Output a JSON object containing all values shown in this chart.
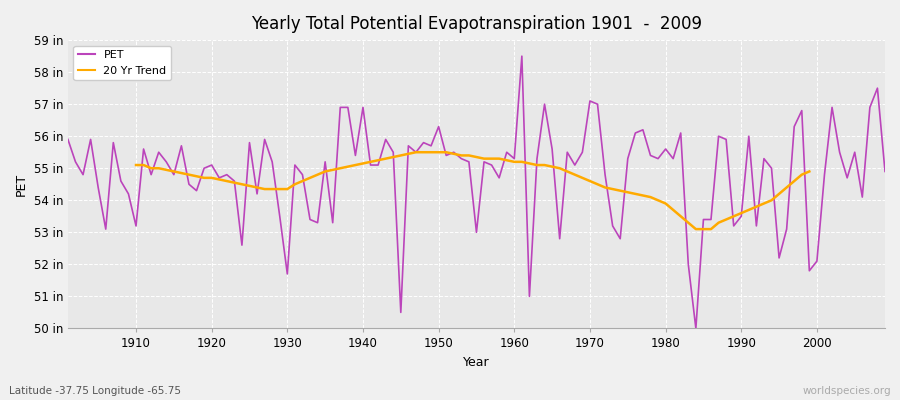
{
  "title": "Yearly Total Potential Evapotranspiration 1901  -  2009",
  "xlabel": "Year",
  "ylabel": "PET",
  "subtitle": "Latitude -37.75 Longitude -65.75",
  "watermark": "worldspecies.org",
  "ylim": [
    50,
    59
  ],
  "yticks": [
    50,
    51,
    52,
    53,
    54,
    55,
    56,
    57,
    58,
    59
  ],
  "ytick_labels": [
    "50 in",
    "51 in",
    "52 in",
    "53 in",
    "54 in",
    "55 in",
    "56 in",
    "57 in",
    "58 in",
    "59 in"
  ],
  "pet_color": "#bb44bb",
  "trend_color": "#ffaa00",
  "fig_bg_color": "#f0f0f0",
  "plot_bg_color": "#e8e8e8",
  "grid_color": "#ffffff",
  "years": [
    1901,
    1902,
    1903,
    1904,
    1905,
    1906,
    1907,
    1908,
    1909,
    1910,
    1911,
    1912,
    1913,
    1914,
    1915,
    1916,
    1917,
    1918,
    1919,
    1920,
    1921,
    1922,
    1923,
    1924,
    1925,
    1926,
    1927,
    1928,
    1929,
    1930,
    1931,
    1932,
    1933,
    1934,
    1935,
    1936,
    1937,
    1938,
    1939,
    1940,
    1941,
    1942,
    1943,
    1944,
    1945,
    1946,
    1947,
    1948,
    1949,
    1950,
    1951,
    1952,
    1953,
    1954,
    1955,
    1956,
    1957,
    1958,
    1959,
    1960,
    1961,
    1962,
    1963,
    1964,
    1965,
    1966,
    1967,
    1968,
    1969,
    1970,
    1971,
    1972,
    1973,
    1974,
    1975,
    1976,
    1977,
    1978,
    1979,
    1980,
    1981,
    1982,
    1983,
    1984,
    1985,
    1986,
    1987,
    1988,
    1989,
    1990,
    1991,
    1992,
    1993,
    1994,
    1995,
    1996,
    1997,
    1998,
    1999,
    2000,
    2001,
    2002,
    2003,
    2004,
    2005,
    2006,
    2007,
    2008,
    2009
  ],
  "pet_values": [
    55.9,
    55.2,
    54.8,
    55.9,
    54.4,
    53.1,
    55.8,
    54.6,
    54.2,
    53.2,
    55.6,
    54.8,
    55.5,
    55.2,
    54.8,
    55.7,
    54.5,
    54.3,
    55.0,
    55.1,
    54.7,
    54.8,
    54.6,
    52.6,
    55.8,
    54.2,
    55.9,
    55.2,
    53.5,
    51.7,
    55.1,
    54.8,
    53.4,
    53.3,
    55.2,
    53.3,
    56.9,
    56.9,
    55.4,
    56.9,
    55.1,
    55.1,
    55.9,
    55.5,
    50.5,
    55.7,
    55.5,
    55.8,
    55.7,
    56.3,
    55.4,
    55.5,
    55.3,
    55.2,
    53.0,
    55.2,
    55.1,
    54.7,
    55.5,
    55.3,
    58.5,
    51.0,
    55.3,
    57.0,
    55.6,
    52.8,
    55.5,
    55.1,
    55.5,
    57.1,
    57.0,
    54.8,
    53.2,
    52.8,
    55.3,
    56.1,
    56.2,
    55.4,
    55.3,
    55.6,
    55.3,
    56.1,
    52.0,
    50.0,
    53.4,
    53.4,
    56.0,
    55.9,
    53.2,
    53.5,
    56.0,
    53.2,
    55.3,
    55.0,
    52.2,
    53.1,
    56.3,
    56.8,
    51.8,
    52.1,
    54.8,
    56.9,
    55.5,
    54.7,
    55.5,
    54.1,
    56.9,
    57.5,
    54.9
  ],
  "trend_values": [
    null,
    null,
    null,
    null,
    null,
    null,
    null,
    null,
    null,
    55.1,
    55.1,
    55.0,
    55.0,
    54.95,
    54.9,
    54.85,
    54.8,
    54.75,
    54.7,
    54.7,
    54.65,
    54.6,
    54.55,
    54.5,
    54.45,
    54.4,
    54.35,
    54.35,
    54.35,
    54.35,
    54.5,
    54.6,
    54.7,
    54.8,
    54.9,
    54.95,
    55.0,
    55.05,
    55.1,
    55.15,
    55.2,
    55.25,
    55.3,
    55.35,
    55.4,
    55.45,
    55.5,
    55.5,
    55.5,
    55.5,
    55.5,
    55.45,
    55.4,
    55.4,
    55.35,
    55.3,
    55.3,
    55.3,
    55.25,
    55.2,
    55.2,
    55.15,
    55.1,
    55.1,
    55.05,
    55.0,
    54.9,
    54.8,
    54.7,
    54.6,
    54.5,
    54.4,
    54.35,
    54.3,
    54.25,
    54.2,
    54.15,
    54.1,
    54.0,
    53.9,
    53.7,
    53.5,
    53.3,
    53.1,
    53.1,
    53.1,
    53.3,
    53.4,
    53.5,
    53.6,
    53.7,
    53.8,
    53.9,
    54.0,
    54.2,
    54.4,
    54.6,
    54.8,
    54.9,
    null,
    null,
    null,
    null,
    null,
    null,
    null,
    null,
    null
  ]
}
